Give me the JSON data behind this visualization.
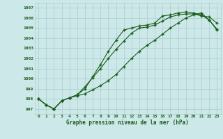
{
  "xlabel": "Graphe pression niveau de la mer (hPa)",
  "background_color": "#cce8e8",
  "grid_color": "#aacccc",
  "line_color": "#1a5c1a",
  "xlim": [
    -0.5,
    23.5
  ],
  "ylim": [
    996.5,
    1007.5
  ],
  "yticks": [
    997,
    998,
    999,
    1000,
    1001,
    1002,
    1003,
    1004,
    1005,
    1006,
    1007
  ],
  "xticks": [
    0,
    1,
    2,
    3,
    4,
    5,
    6,
    7,
    8,
    9,
    10,
    11,
    12,
    13,
    14,
    15,
    16,
    17,
    18,
    19,
    20,
    21,
    22,
    23
  ],
  "line1": [
    998.0,
    997.4,
    997.0,
    997.8,
    998.1,
    998.4,
    999.2,
    1000.1,
    1001.0,
    1002.0,
    1002.9,
    1003.7,
    1004.5,
    1005.0,
    1005.1,
    1005.3,
    1005.7,
    1006.1,
    1006.3,
    1006.4,
    1006.4,
    1006.2,
    1006.1,
    1005.5
  ],
  "line2": [
    998.0,
    997.4,
    997.0,
    997.8,
    998.1,
    998.4,
    999.0,
    1000.2,
    1001.4,
    1002.7,
    1003.8,
    1004.8,
    1005.0,
    1005.2,
    1005.3,
    1005.5,
    1006.2,
    1006.3,
    1006.5,
    1006.6,
    1006.5,
    1006.3,
    1005.8,
    1004.9
  ],
  "line3": [
    998.0,
    997.4,
    997.0,
    997.8,
    998.1,
    998.3,
    998.5,
    998.9,
    999.3,
    999.8,
    1000.4,
    1001.2,
    1002.0,
    1002.7,
    1003.3,
    1003.8,
    1004.4,
    1005.0,
    1005.5,
    1006.0,
    1006.3,
    1006.5,
    1005.8,
    1004.8
  ]
}
